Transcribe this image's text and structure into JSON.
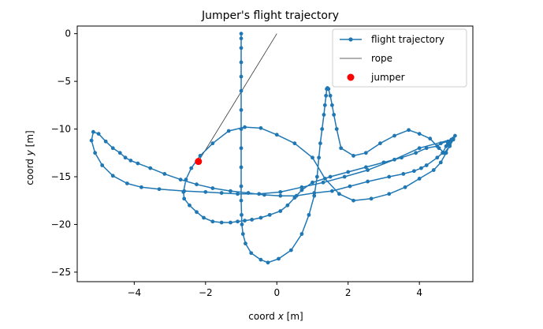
{
  "chart_data": {
    "type": "line",
    "title": "Jumper's flight trajectory",
    "xlabel": "coord x [m]",
    "xlabel_prefix": "coord ",
    "xlabel_var": "x",
    "xlabel_suffix": " [m]",
    "ylabel": "coord y [m]",
    "ylabel_prefix": "coord ",
    "ylabel_var": "y",
    "ylabel_suffix": " [m]",
    "xlim": [
      -5.6,
      5.5
    ],
    "ylim": [
      -26.0,
      0.8
    ],
    "xticks": [
      -4,
      -2,
      0,
      2,
      4
    ],
    "xtick_labels": [
      "−4",
      "−2",
      "0",
      "2",
      "4"
    ],
    "yticks": [
      0,
      -5,
      -10,
      -15,
      -20,
      -25
    ],
    "ytick_labels": [
      "0",
      "−5",
      "−10",
      "−15",
      "−20",
      "−25"
    ],
    "grid": false,
    "legend_position": "top-right",
    "series": [
      {
        "name": "flight trajectory",
        "kind": "line-with-markers",
        "color": "#1f77b4",
        "x": [
          -1.0,
          -1.0,
          -1.0,
          -1.0,
          -1.0,
          -1.0,
          -1.0,
          -1.0,
          -1.0,
          -1.0,
          -1.0,
          -1.0,
          -0.99,
          -0.98,
          -0.95,
          -0.88,
          -0.72,
          -0.45,
          -0.25,
          0.05,
          0.4,
          0.7,
          0.9,
          1.05,
          1.13,
          1.18,
          1.22,
          1.27,
          1.32,
          1.35,
          1.38,
          1.4,
          1.42,
          1.45,
          1.5,
          1.55,
          1.6,
          1.68,
          1.8,
          2.15,
          2.5,
          2.9,
          3.3,
          3.7,
          4.0,
          4.3,
          4.55,
          4.7,
          4.85,
          4.95,
          5.0,
          4.95,
          4.9,
          4.85,
          4.8,
          4.75,
          4.65,
          4.5,
          4.2,
          4.05,
          3.85,
          3.55,
          3.15,
          2.55,
          2.05,
          1.55,
          1.05,
          0.55,
          0.1,
          -0.35,
          -0.8,
          -1.3,
          -1.8,
          -2.25,
          -2.7,
          -3.15,
          -3.55,
          -3.9,
          -4.1,
          -4.25,
          -4.4,
          -4.6,
          -4.8,
          -5.0,
          -5.15,
          -5.2,
          -5.1,
          -4.9,
          -4.6,
          -4.2,
          -3.8,
          -3.3,
          -2.6,
          -2.0,
          -1.55,
          -1.1,
          -0.5,
          0.1,
          0.7,
          1.3,
          1.9,
          2.55,
          3.3,
          4.0,
          4.9,
          4.8,
          4.6,
          4.5,
          4.2,
          3.9,
          3.5,
          3.0,
          2.5,
          2.0,
          1.5,
          1.0,
          0.7,
          0.5,
          0.3,
          0.1,
          -0.2,
          -0.45,
          -0.7,
          -0.9,
          -1.1,
          -1.3,
          -1.55,
          -1.8,
          -2.05,
          -2.25,
          -2.45,
          -2.6,
          -2.62,
          -2.55,
          -2.4,
          -2.15,
          -1.8,
          -1.35,
          -0.9,
          -0.45,
          0.0,
          0.5,
          1.0,
          1.35,
          1.75,
          2.15,
          2.65,
          3.15,
          3.6,
          4.0,
          4.4,
          4.6,
          4.75,
          4.85,
          4.95
        ],
        "y": [
          0.0,
          -0.5,
          -1.5,
          -3.0,
          -4.5,
          -6.0,
          -8.0,
          -10.0,
          -12.0,
          -14.0,
          -16.0,
          -17.5,
          -19.0,
          -20.0,
          -21.0,
          -22.0,
          -23.0,
          -23.7,
          -24.0,
          -23.6,
          -22.7,
          -21.0,
          -19.0,
          -17.0,
          -15.0,
          -13.0,
          -11.5,
          -10.0,
          -8.5,
          -7.5,
          -6.5,
          -5.8,
          -5.7,
          -5.8,
          -6.5,
          -7.5,
          -8.5,
          -10.0,
          -12.0,
          -12.8,
          -12.5,
          -11.5,
          -10.7,
          -10.1,
          -10.5,
          -11.0,
          -12.0,
          -12.5,
          -11.8,
          -11.1,
          -10.7,
          -11.0,
          -11.2,
          -11.3,
          -11.5,
          -11.8,
          -12.5,
          -13.0,
          -13.8,
          -14.1,
          -14.4,
          -14.7,
          -15.0,
          -15.5,
          -16.0,
          -16.5,
          -16.7,
          -17.0,
          -17.0,
          -16.9,
          -16.7,
          -16.5,
          -16.2,
          -15.8,
          -15.3,
          -14.7,
          -14.1,
          -13.6,
          -13.3,
          -13.0,
          -12.5,
          -12.0,
          -11.3,
          -10.5,
          -10.3,
          -11.2,
          -12.5,
          -13.8,
          -14.9,
          -15.7,
          -16.1,
          -16.3,
          -16.5,
          -16.6,
          -16.7,
          -16.8,
          -16.8,
          -16.6,
          -16.1,
          -15.6,
          -15.0,
          -14.3,
          -13.2,
          -12.0,
          -11.1,
          -11.3,
          -11.5,
          -11.8,
          -12.0,
          -12.5,
          -13.0,
          -13.5,
          -14.0,
          -14.5,
          -15.0,
          -15.6,
          -16.4,
          -17.2,
          -18.0,
          -18.6,
          -19.0,
          -19.3,
          -19.5,
          -19.6,
          -19.7,
          -19.8,
          -19.8,
          -19.7,
          -19.3,
          -18.7,
          -18.0,
          -17.3,
          -16.6,
          -15.3,
          -14.1,
          -12.8,
          -11.5,
          -10.2,
          -9.8,
          -9.9,
          -10.6,
          -11.5,
          -13.0,
          -15.2,
          -16.8,
          -17.5,
          -17.3,
          -16.8,
          -16.1,
          -15.2,
          -14.3,
          -13.5,
          -12.5,
          -11.7,
          -11.0
        ],
        "markers_every": 1
      },
      {
        "name": "rope",
        "kind": "line",
        "color": "#333333",
        "x": [
          0.0,
          -2.2
        ],
        "y": [
          0.0,
          -13.4
        ]
      },
      {
        "name": "jumper",
        "kind": "scatter",
        "color": "#ff0000",
        "x": [
          -2.2
        ],
        "y": [
          -13.4
        ]
      }
    ]
  }
}
